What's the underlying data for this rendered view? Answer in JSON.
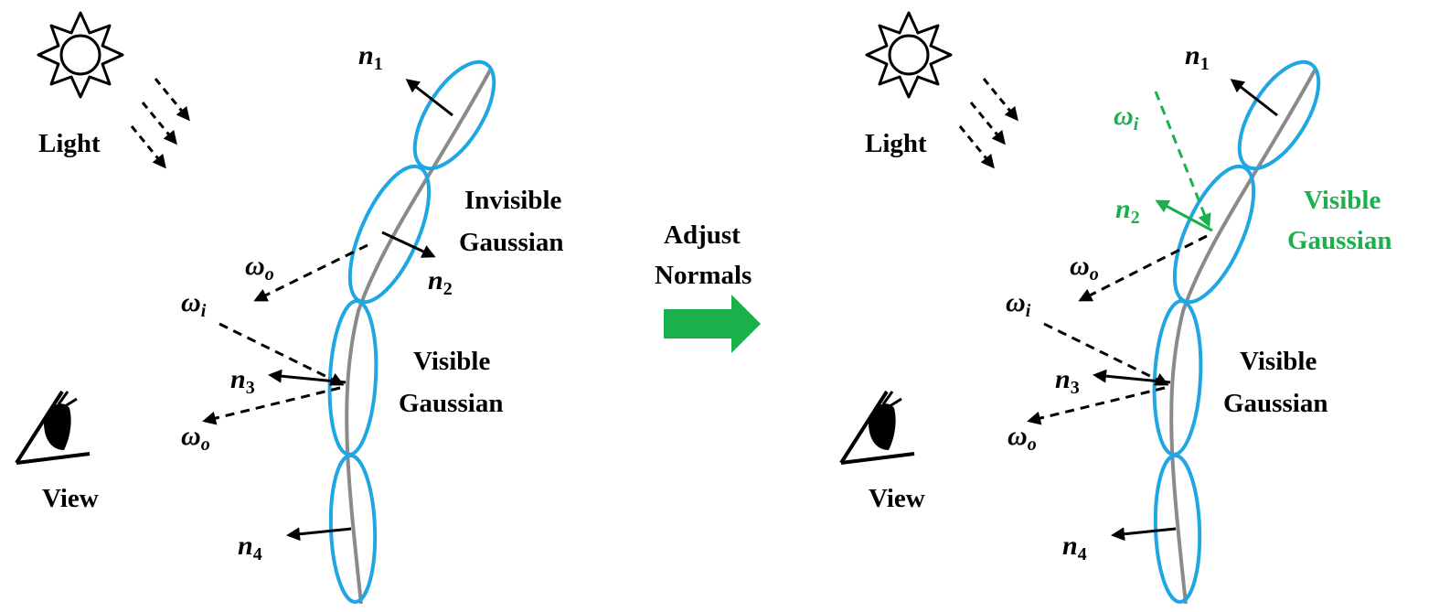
{
  "colors": {
    "ellipse": "#1fa6e3",
    "surface": "#8a8a8a",
    "ink": "#000000",
    "green": "#1ab04c"
  },
  "icons": [
    "sun-icon",
    "eye-icon",
    "right-arrow-icon"
  ],
  "left_panel": {
    "light_label": "Light",
    "view_label": "View",
    "top_gaussian_label_line1": "Invisible",
    "top_gaussian_label_line2": "Gaussian",
    "bottom_gaussian_label_line1": "Visible",
    "bottom_gaussian_label_line2": "Gaussian",
    "normals": [
      {
        "base": "n",
        "sub": "1"
      },
      {
        "base": "n",
        "sub": "2"
      },
      {
        "base": "n",
        "sub": "3"
      },
      {
        "base": "n",
        "sub": "4"
      }
    ],
    "omega_o": {
      "base": "ω",
      "sub": "o"
    },
    "omega_i": {
      "base": "ω",
      "sub": "i"
    }
  },
  "middle": {
    "line1": "Adjust",
    "line2": "Normals"
  },
  "right_panel": {
    "light_label": "Light",
    "view_label": "View",
    "top_gaussian_label_line1": "Visible",
    "top_gaussian_label_line2": "Gaussian",
    "bottom_gaussian_label_line1": "Visible",
    "bottom_gaussian_label_line2": "Gaussian",
    "normals": [
      {
        "base": "n",
        "sub": "1"
      },
      {
        "base": "n",
        "sub": "2"
      },
      {
        "base": "n",
        "sub": "3"
      },
      {
        "base": "n",
        "sub": "4"
      }
    ],
    "omega_o": {
      "base": "ω",
      "sub": "o"
    },
    "omega_i": {
      "base": "ω",
      "sub": "i"
    }
  }
}
